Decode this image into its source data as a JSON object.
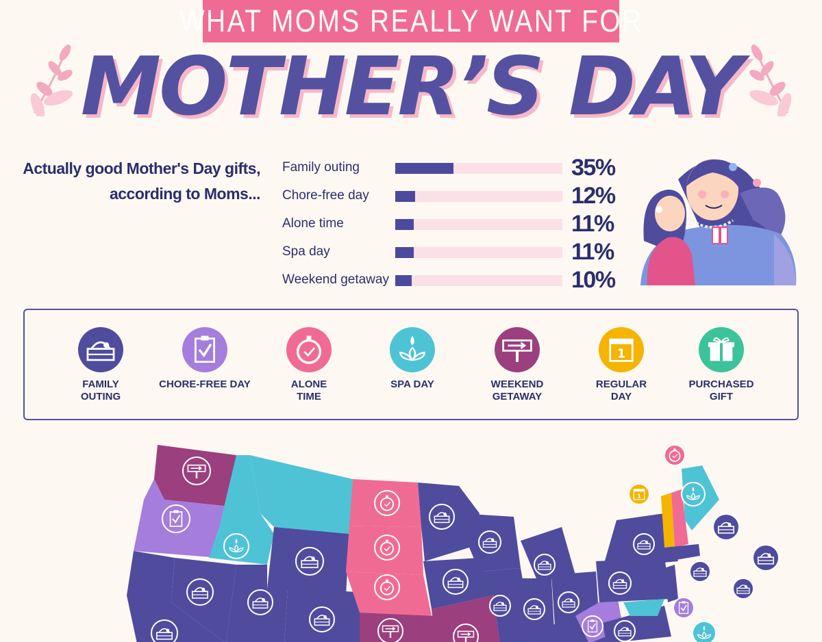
{
  "header": {
    "banner": "WHAT MOMS REALLY WANT FOR",
    "title": "MOTHER’S DAY"
  },
  "subtitle": {
    "line1": "Actually good Mother's Day gifts,",
    "line2": "according to Moms..."
  },
  "chart_data": {
    "type": "bar",
    "title": "Actually good Mother's Day gifts, according to Moms...",
    "categories": [
      "Family outing",
      "Chore-free day",
      "Alone time",
      "Spa day",
      "Weekend getaway"
    ],
    "values": [
      35,
      12,
      11,
      11,
      10
    ],
    "value_labels": [
      "35%",
      "12%",
      "11%",
      "11%",
      "10%"
    ],
    "xlim": [
      0,
      100
    ],
    "grid": false,
    "colors": {
      "fill": "#4c4a9e",
      "track": "#fbe0e6"
    }
  },
  "legend": {
    "items": [
      {
        "label": "FAMILY\nOUTING",
        "color": "#4f4c9e",
        "icon": "picnic-basket-icon"
      },
      {
        "label": "CHORE-FREE DAY",
        "color": "#a57ddc",
        "icon": "clipboard-check-icon"
      },
      {
        "label": "ALONE\nTIME",
        "color": "#f06b93",
        "icon": "stopwatch-icon"
      },
      {
        "label": "SPA DAY",
        "color": "#4fc3d6",
        "icon": "lotus-drop-icon"
      },
      {
        "label": "WEEKEND\nGETAWAY",
        "color": "#9b3f7e",
        "icon": "road-sign-icon"
      },
      {
        "label": "REGULAR\nDAY",
        "color": "#f5b400",
        "icon": "calendar-icon"
      },
      {
        "label": "PURCHASED\nGIFT",
        "color": "#3cc39a",
        "icon": "gift-box-icon"
      }
    ]
  },
  "map_colors": {
    "family_outing": "#4f4c9e",
    "chore_free": "#a57ddc",
    "alone_time": "#f06b93",
    "spa_day": "#4fc3d6",
    "weekend_getaway": "#9b3f7e",
    "regular_day": "#f5b400"
  }
}
